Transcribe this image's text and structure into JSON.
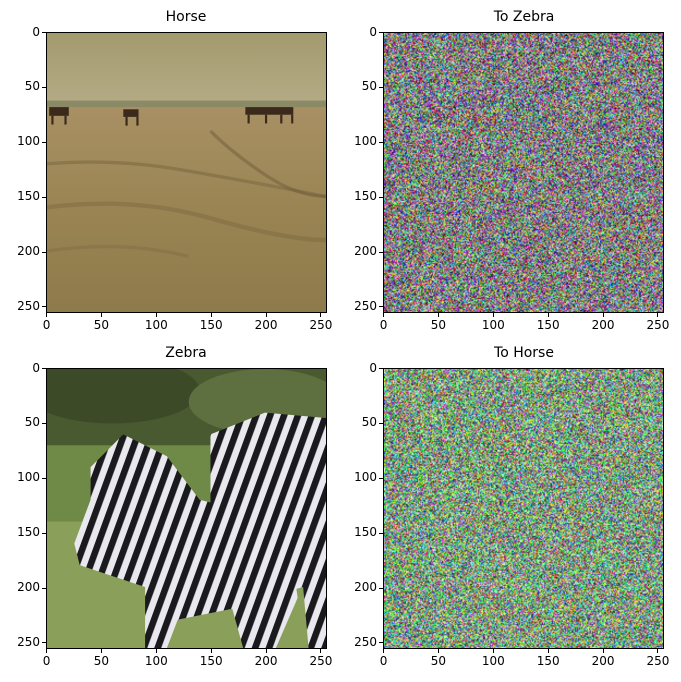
{
  "chart_data": [
    {
      "type": "image",
      "title": "Horse",
      "content": "photo of horses on a sandy beach",
      "xticks": [
        "0",
        "50",
        "100",
        "150",
        "200",
        "250"
      ],
      "yticks": [
        "0",
        "50",
        "100",
        "150",
        "200",
        "250"
      ],
      "xlim": [
        0,
        256
      ],
      "ylim": [
        256,
        0
      ]
    },
    {
      "type": "image",
      "title": "To Zebra",
      "content": "multicolored noise",
      "xticks": [
        "0",
        "50",
        "100",
        "150",
        "200",
        "250"
      ],
      "yticks": [
        "0",
        "50",
        "100",
        "150",
        "200",
        "250"
      ],
      "xlim": [
        0,
        256
      ],
      "ylim": [
        256,
        0
      ]
    },
    {
      "type": "image",
      "title": "Zebra",
      "content": "photo of two zebras in grass",
      "xticks": [
        "0",
        "50",
        "100",
        "150",
        "200",
        "250"
      ],
      "yticks": [
        "0",
        "50",
        "100",
        "150",
        "200",
        "250"
      ],
      "xlim": [
        0,
        256
      ],
      "ylim": [
        256,
        0
      ]
    },
    {
      "type": "image",
      "title": "To Horse",
      "content": "multicolored noise",
      "xticks": [
        "0",
        "50",
        "100",
        "150",
        "200",
        "250"
      ],
      "yticks": [
        "0",
        "50",
        "100",
        "150",
        "200",
        "250"
      ],
      "xlim": [
        0,
        256
      ],
      "ylim": [
        256,
        0
      ]
    }
  ]
}
